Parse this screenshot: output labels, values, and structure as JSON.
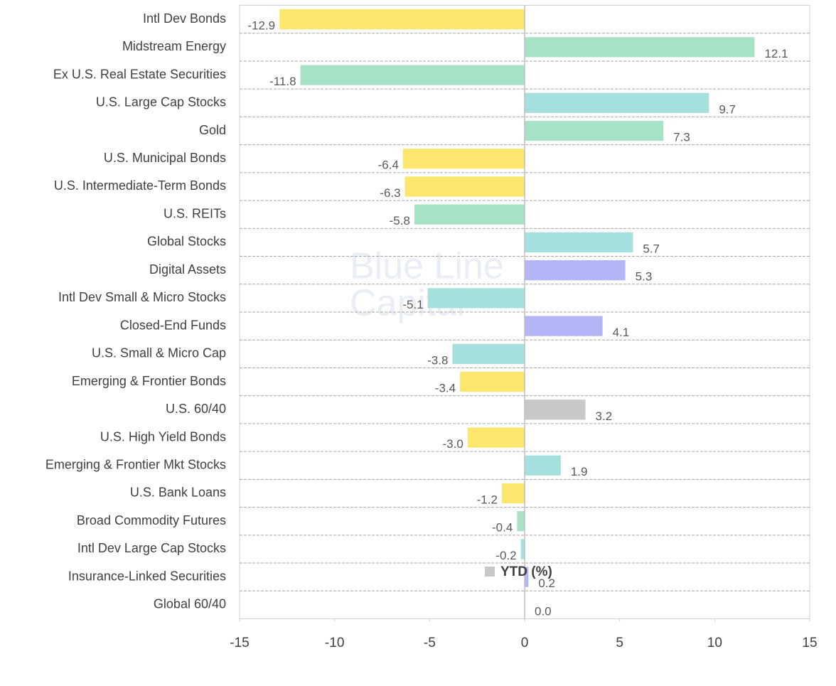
{
  "chart_data": {
    "type": "barh",
    "watermark": [
      "Blue Line",
      "Capital"
    ],
    "categories": [
      "Intl Dev Bonds",
      "Midstream Energy",
      "Ex U.S. Real Estate Securities",
      "U.S. Large Cap Stocks",
      "Gold",
      "U.S. Municipal Bonds",
      "U.S. Intermediate-Term Bonds",
      "U.S. REITs",
      "Global Stocks",
      "Digital Assets",
      "Intl Dev Small & Micro Stocks",
      "Closed-End Funds",
      "U.S. Small & Micro Cap",
      "Emerging & Frontier Bonds",
      "U.S. 60/40",
      "U.S. High Yield Bonds",
      "Emerging & Frontier Mkt Stocks",
      "U.S. Bank Loans",
      "Broad Commodity Futures",
      "Intl Dev Large Cap Stocks",
      "Insurance-Linked Securities",
      "Global 60/40"
    ],
    "series": [
      {
        "name": "YTD (%)",
        "color": "#c8c8c8",
        "values": [
          -12.9,
          12.1,
          -11.8,
          9.7,
          7.3,
          -6.4,
          -6.3,
          -5.8,
          5.7,
          5.3,
          -5.1,
          4.1,
          -3.8,
          -3.4,
          3.2,
          -3,
          1.9,
          -1.2,
          -0.4,
          -0.2,
          0.2,
          0
        ],
        "value_labels": [
          "-12.9",
          "12.1",
          "-11.8",
          "9.7",
          "7.3",
          "-6.4",
          "-6.3",
          "-5.8",
          "5.7",
          "5.3",
          "-5.1",
          "4.1",
          "-3.8",
          "-3.4",
          "3.2",
          "-3.0",
          "1.9",
          "-1.2",
          "-0.4",
          "-0.2",
          "0.2",
          "0.0"
        ],
        "colors": [
          "#fde66e",
          "#a8e2c6",
          "#a8e2c6",
          "#a6e0de",
          "#a8e2c6",
          "#fde66e",
          "#fde66e",
          "#a8e2c6",
          "#a6e0de",
          "#b3b5f7",
          "#a6e0de",
          "#b3b5f7",
          "#a6e0de",
          "#fde66e",
          "#c8c8c8",
          "#fde66e",
          "#a6e0de",
          "#fde66e",
          "#a8e2c6",
          "#a6e0de",
          "#b3b5f7",
          "#b3b5f7"
        ]
      }
    ],
    "xlim": [
      -15,
      15
    ],
    "xticks": [
      -15,
      -10,
      -5,
      0,
      5,
      10,
      15
    ],
    "grid": true,
    "legend": "bottom"
  }
}
